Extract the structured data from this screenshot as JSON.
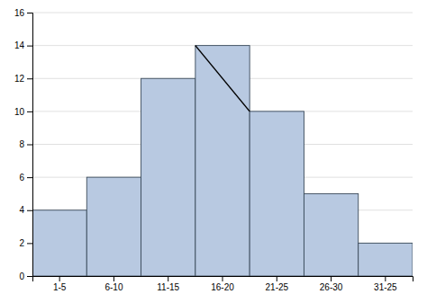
{
  "chart_data": {
    "type": "bar",
    "categories": [
      "1-5",
      "6-10",
      "11-15",
      "16-20",
      "21-25",
      "26-30",
      "31-25"
    ],
    "values": [
      4,
      6,
      12,
      14,
      10,
      5,
      2
    ],
    "color": "#b8c9e1",
    "ylim": [
      0,
      16
    ],
    "yticks": [
      0,
      2,
      4,
      6,
      8,
      10,
      12,
      14,
      16
    ],
    "grid": true
  }
}
